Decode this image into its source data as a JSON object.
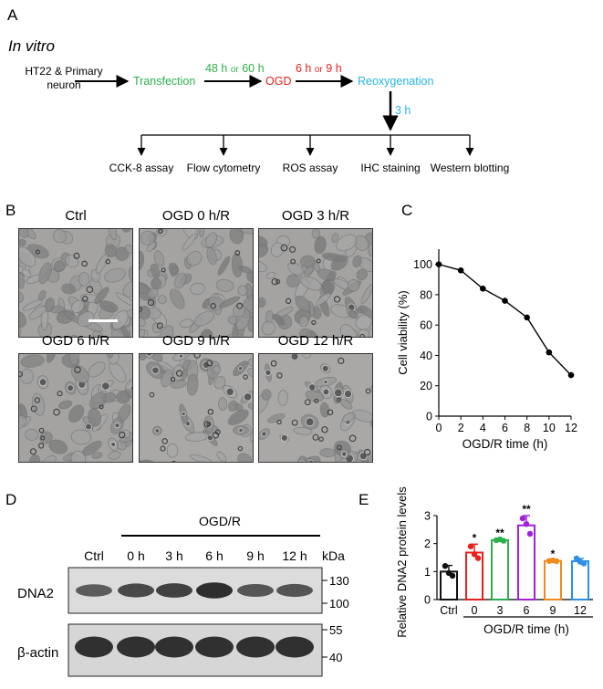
{
  "panel_a": {
    "letter": "A",
    "title": "In vitro",
    "source_line1": "HT22 & Primary",
    "source_line2": "neuron",
    "step_transfection": "Transfection",
    "step_ogd": "OGD",
    "step_reoxygenation": "Reoxygenation",
    "time1_a": "48 h",
    "time1_or": "or",
    "time1_b": "60 h",
    "time2_a": "6 h",
    "time2_or": "or",
    "time2_b": "9 h",
    "time3": "3 h",
    "assays": [
      "CCK-8 assay",
      "Flow cytometry",
      "ROS assay",
      "IHC staining",
      "Western blotting"
    ],
    "colors": {
      "transfection": "#2bb04a",
      "ogd": "#e8201c",
      "reoxygenation": "#27b4e6"
    }
  },
  "panel_b": {
    "letter": "B",
    "labels": [
      "Ctrl",
      "OGD 0 h/R",
      "OGD 3 h/R",
      "OGD 6 h/R",
      "OGD 9 h/R",
      "OGD 12 h/R"
    ]
  },
  "panel_d": {
    "letter": "D",
    "group_label": "OGD/R",
    "lanes": [
      "Ctrl",
      "0 h",
      "3 h",
      "6 h",
      "9 h",
      "12 h"
    ],
    "unit": "kDa",
    "proteins": [
      "DNA2",
      "β-actin"
    ],
    "mw_dna2": [
      "130",
      "100"
    ],
    "mw_actin": [
      "55",
      "40"
    ],
    "dna2_band_intensity": [
      0.55,
      0.72,
      0.78,
      0.95,
      0.6,
      0.62
    ],
    "actin_band_intensity": [
      0.9,
      0.9,
      0.9,
      0.9,
      0.9,
      0.9
    ]
  },
  "chart_data": [
    {
      "panel": "C",
      "type": "line",
      "title": "",
      "xlabel": "OGD/R time (h)",
      "ylabel": "Cell viability (%)",
      "x": [
        0,
        2,
        4,
        6,
        8,
        10,
        12
      ],
      "series": [
        {
          "values": [
            100,
            96,
            84,
            76,
            65,
            42,
            27
          ]
        }
      ],
      "xlim": [
        0,
        12
      ],
      "ylim": [
        0,
        110
      ],
      "xticks": [
        "0",
        "2",
        "4",
        "6",
        "8",
        "10",
        "12"
      ],
      "yticks": [
        "0",
        "20",
        "40",
        "60",
        "80",
        "100"
      ],
      "grid": false
    },
    {
      "panel": "E",
      "type": "bar",
      "title": "",
      "xlabel": "OGD/R time (h)",
      "ylabel": "Relative DNA2 protein levels",
      "categories": [
        "Ctrl",
        "0",
        "3",
        "6",
        "9",
        "12"
      ],
      "values": [
        1.0,
        1.68,
        2.12,
        2.65,
        1.38,
        1.37
      ],
      "errors": [
        0.22,
        0.3,
        0.04,
        0.35,
        0.03,
        0.1
      ],
      "points": [
        [
          1.2,
          0.85,
          0.95
        ],
        [
          1.9,
          1.48,
          1.62
        ],
        [
          2.12,
          2.1,
          2.15
        ],
        [
          2.9,
          2.35,
          2.7
        ],
        [
          1.38,
          1.37,
          1.4
        ],
        [
          1.47,
          1.29,
          1.35
        ]
      ],
      "significance": [
        "",
        "*",
        "**",
        "**",
        "*",
        ""
      ],
      "colors": [
        "#111111",
        "#e8201c",
        "#2bb04a",
        "#a020e0",
        "#f08a1c",
        "#2c8fe8"
      ],
      "ylim": [
        0,
        3
      ],
      "yticks": [
        "0",
        "1",
        "2",
        "3"
      ],
      "grid": false
    }
  ],
  "panel_c_letter": "C",
  "panel_e_letter": "E"
}
